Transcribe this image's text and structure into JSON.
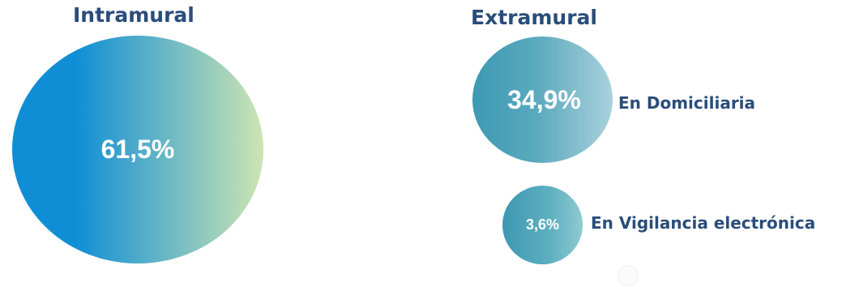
{
  "chart_data": {
    "type": "bubble",
    "groups": [
      {
        "name": "Intramural",
        "items": [
          {
            "label": "",
            "value": 61.5,
            "display": "61,5%"
          }
        ]
      },
      {
        "name": "Extramural",
        "items": [
          {
            "label": "En Domiciliaria",
            "value": 34.9,
            "display": "34,9%"
          },
          {
            "label": "En Vigilancia electrónica",
            "value": 3.6,
            "display": "3,6%"
          }
        ]
      }
    ],
    "colors": {
      "heading": "#2a4d7a",
      "bubble_gradient_start": "#0f8ed5",
      "bubble_gradient_mid": "#5aa9bd",
      "bubble_gradient_end": "#cde5b2",
      "value_text": "#ffffff"
    }
  }
}
